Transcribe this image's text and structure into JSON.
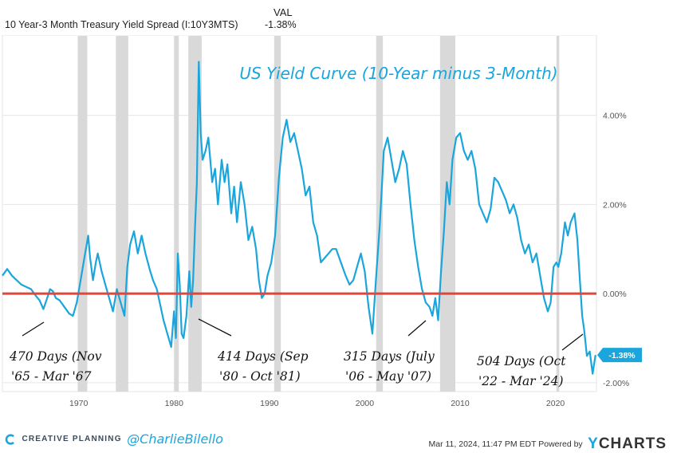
{
  "header": {
    "series_label": "10 Year-3 Month Treasury Yield Spread (I:10Y3MTS)",
    "column_label": "VAL",
    "current_value": "-1.38%"
  },
  "footer": {
    "brand": "CREATIVE PLANNING",
    "handle": "@CharlieBilello",
    "timestamp": "Mar 11, 2024, 11:47 PM EDT Powered by",
    "provider_prefix": "Y",
    "provider_rest": "CHARTS"
  },
  "colors": {
    "series": "#1aa6dc",
    "zero_line": "#e0463a",
    "recession": "#d9d9d9",
    "annotation": "#1aa6dc"
  },
  "chart_data": {
    "type": "line",
    "title": "US Yield Curve (10-Year minus 3-Month)",
    "xlabel": "",
    "ylabel": "",
    "xlim": [
      1962.0,
      2024.3
    ],
    "ylim": [
      -2.2,
      5.8
    ],
    "x_ticks": [
      {
        "value": 1970,
        "label": "1970"
      },
      {
        "value": 1980,
        "label": "1980"
      },
      {
        "value": 1990,
        "label": "1990"
      },
      {
        "value": 2000,
        "label": "2000"
      },
      {
        "value": 2010,
        "label": "2010"
      },
      {
        "value": 2020,
        "label": "2020"
      }
    ],
    "y_ticks": [
      {
        "value": 4,
        "label": "4.00%"
      },
      {
        "value": 2,
        "label": "2.00%"
      },
      {
        "value": 0,
        "label": "0.00%"
      },
      {
        "value": -2,
        "label": "-2.00%"
      }
    ],
    "last_value": -1.38,
    "last_value_label": "-1.38%",
    "zero_line": 0,
    "recessions": [
      [
        1969.9,
        1970.9
      ],
      [
        1973.9,
        1975.2
      ],
      [
        1980.0,
        1980.5
      ],
      [
        1981.5,
        1982.9
      ],
      [
        1990.5,
        1991.2
      ],
      [
        2001.2,
        2001.9
      ],
      [
        2007.9,
        2009.5
      ],
      [
        2020.1,
        2020.4
      ]
    ],
    "series": [
      {
        "name": "10 Year-3 Month Treasury Yield Spread",
        "x": [
          1962.0,
          1962.5,
          1963.0,
          1963.5,
          1964.0,
          1964.5,
          1965.0,
          1965.5,
          1965.9,
          1966.3,
          1966.7,
          1967.0,
          1967.3,
          1967.6,
          1968.0,
          1968.5,
          1969.0,
          1969.4,
          1969.8,
          1970.2,
          1970.6,
          1971.0,
          1971.2,
          1971.5,
          1971.8,
          1972.0,
          1972.4,
          1972.8,
          1973.2,
          1973.6,
          1974.0,
          1974.4,
          1974.8,
          1975.1,
          1975.4,
          1975.8,
          1976.2,
          1976.6,
          1977.0,
          1977.5,
          1977.8,
          1978.2,
          1978.6,
          1978.9,
          1979.3,
          1979.7,
          1980.0,
          1980.2,
          1980.4,
          1980.6,
          1980.8,
          1981.0,
          1981.3,
          1981.6,
          1981.8,
          1982.0,
          1982.2,
          1982.4,
          1982.6,
          1982.8,
          1983.0,
          1983.3,
          1983.6,
          1984.0,
          1984.3,
          1984.6,
          1985.0,
          1985.3,
          1985.6,
          1986.0,
          1986.3,
          1986.6,
          1987.0,
          1987.4,
          1987.8,
          1988.2,
          1988.6,
          1988.9,
          1989.2,
          1989.5,
          1989.8,
          1990.2,
          1990.6,
          1991.0,
          1991.4,
          1991.8,
          1992.2,
          1992.6,
          1993.0,
          1993.4,
          1993.8,
          1994.2,
          1994.6,
          1995.0,
          1995.4,
          1995.8,
          1996.2,
          1996.6,
          1997.0,
          1997.5,
          1998.0,
          1998.4,
          1998.8,
          1999.2,
          1999.6,
          2000.0,
          2000.4,
          2000.8,
          2001.2,
          2001.6,
          2002.0,
          2002.4,
          2002.8,
          2003.2,
          2003.6,
          2004.0,
          2004.4,
          2004.8,
          2005.2,
          2005.6,
          2006.0,
          2006.4,
          2006.8,
          2007.1,
          2007.4,
          2007.7,
          2008.0,
          2008.3,
          2008.6,
          2008.9,
          2009.2,
          2009.6,
          2010.0,
          2010.4,
          2010.8,
          2011.2,
          2011.6,
          2012.0,
          2012.4,
          2012.8,
          2013.2,
          2013.6,
          2014.0,
          2014.4,
          2014.8,
          2015.2,
          2015.6,
          2016.0,
          2016.4,
          2016.8,
          2017.2,
          2017.6,
          2018.0,
          2018.4,
          2018.8,
          2019.2,
          2019.5,
          2019.8,
          2020.1,
          2020.3,
          2020.6,
          2021.0,
          2021.3,
          2021.6,
          2022.0,
          2022.3,
          2022.5,
          2022.8,
          2023.0,
          2023.3,
          2023.6,
          2023.9,
          2024.2
        ],
        "y": [
          0.4,
          0.55,
          0.4,
          0.3,
          0.2,
          0.15,
          0.1,
          -0.05,
          -0.15,
          -0.35,
          -0.1,
          0.1,
          0.05,
          -0.1,
          -0.15,
          -0.3,
          -0.45,
          -0.5,
          -0.2,
          0.3,
          0.8,
          1.3,
          0.8,
          0.3,
          0.7,
          0.9,
          0.5,
          0.2,
          -0.1,
          -0.4,
          0.1,
          -0.2,
          -0.5,
          0.6,
          1.1,
          1.4,
          0.9,
          1.3,
          0.9,
          0.5,
          0.3,
          0.1,
          -0.3,
          -0.6,
          -0.9,
          -1.2,
          -0.4,
          -1.0,
          0.9,
          0.2,
          -0.9,
          -1.0,
          -0.5,
          0.5,
          -0.3,
          0.3,
          1.5,
          2.5,
          5.2,
          3.6,
          3.0,
          3.2,
          3.5,
          2.5,
          2.8,
          2.0,
          3.0,
          2.5,
          2.9,
          1.8,
          2.4,
          1.6,
          2.5,
          2.0,
          1.2,
          1.5,
          1.0,
          0.3,
          -0.1,
          0.0,
          0.4,
          0.7,
          1.3,
          2.6,
          3.5,
          3.9,
          3.4,
          3.6,
          3.2,
          2.8,
          2.2,
          2.4,
          1.6,
          1.3,
          0.7,
          0.8,
          0.9,
          1.0,
          1.0,
          0.7,
          0.4,
          0.2,
          0.3,
          0.6,
          0.9,
          0.5,
          -0.3,
          -0.9,
          0.4,
          1.6,
          3.2,
          3.5,
          3.0,
          2.5,
          2.8,
          3.2,
          2.9,
          2.0,
          1.2,
          0.6,
          0.1,
          -0.2,
          -0.3,
          -0.5,
          -0.1,
          -0.6,
          0.5,
          1.4,
          2.5,
          2.0,
          3.0,
          3.5,
          3.6,
          3.2,
          3.0,
          3.2,
          2.8,
          2.0,
          1.8,
          1.6,
          1.9,
          2.6,
          2.5,
          2.3,
          2.1,
          1.8,
          2.0,
          1.7,
          1.2,
          0.9,
          1.1,
          0.7,
          0.9,
          0.4,
          -0.1,
          -0.4,
          -0.2,
          0.6,
          0.7,
          0.6,
          0.9,
          1.6,
          1.3,
          1.6,
          1.8,
          1.2,
          0.5,
          -0.5,
          -0.8,
          -1.4,
          -1.3,
          -1.8,
          -1.38
        ]
      }
    ],
    "annotations": [
      {
        "line1": "470 Days (Nov",
        "line2": "'65 - Mar '67"
      },
      {
        "line1": "414 Days (Sep",
        "line2": "'80 - Oct '81)"
      },
      {
        "line1": "315 Days (July",
        "line2": "'06 - May '07)"
      },
      {
        "line1": "504 Days (Oct",
        "line2": "'22 - Mar '24)"
      }
    ]
  }
}
